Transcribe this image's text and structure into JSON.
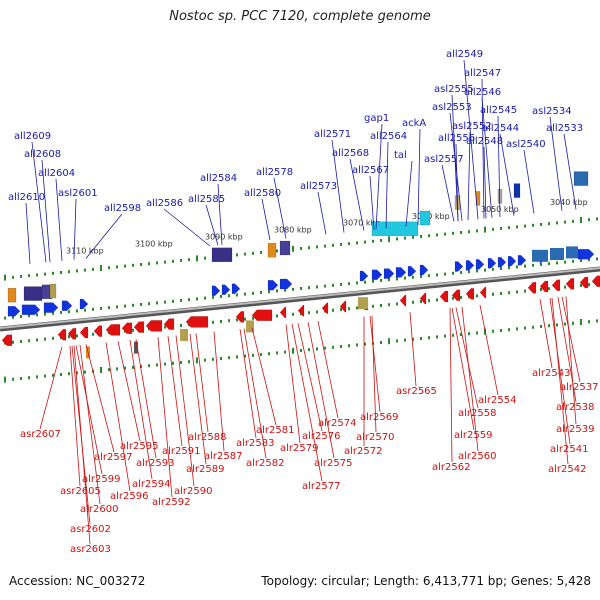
{
  "title": "Nostoc sp. PCC 7120, complete genome",
  "footer": {
    "accession": "Accession: NC_003272",
    "topology": "Topology: circular; Length: 6,413,771 bp; Genes: 5,428"
  },
  "colors": {
    "forward_label": "#1a1aaa",
    "reverse_label": "#cc1111",
    "forward_gene": "#1133dd",
    "reverse_gene": "#e01010",
    "backbone": "#888888",
    "tick": "#2a8a2a"
  },
  "scale_ticks": [
    "3110 kbp",
    "3100 kbp",
    "3090 kbp",
    "3080 kbp",
    "3070 kbp",
    "3060 kbp",
    "3050 kbp",
    "3040 kbp"
  ],
  "forward_labels": [
    "all2609",
    "all2608",
    "all2604",
    "all2610",
    "asl2601",
    "all2598",
    "all2586",
    "all2585",
    "all2584",
    "all2580",
    "all2578",
    "all2573",
    "all2571",
    "all2568",
    "all2567",
    "all2564",
    "gap1",
    "tal",
    "ackA",
    "asl2557",
    "all2556",
    "asl2555",
    "asl2553",
    "asl2552",
    "all2549",
    "all2547",
    "all2546",
    "all2545",
    "all2548",
    "all2544",
    "asl2540",
    "asl2534",
    "all2533"
  ],
  "reverse_labels": [
    "asr2607",
    "asr2605",
    "alr2599",
    "alr2597",
    "alr2600",
    "alr2595",
    "alr2596",
    "alr2594",
    "alr2593",
    "asr2602",
    "asr2603",
    "alr2592",
    "alr2591",
    "alr2590",
    "alr2589",
    "alr2588",
    "alr2587",
    "alr2583",
    "alr2581",
    "alr2582",
    "alr2579",
    "alr2576",
    "alr2574",
    "alr2575",
    "alr2577",
    "alr2569",
    "alr2570",
    "alr2572",
    "asr2565",
    "alr2558",
    "alr2559",
    "alr2554",
    "alr2560",
    "alr2562",
    "alr2543",
    "alr2537",
    "alr2538",
    "alr2539",
    "alr2541",
    "alr2542"
  ]
}
